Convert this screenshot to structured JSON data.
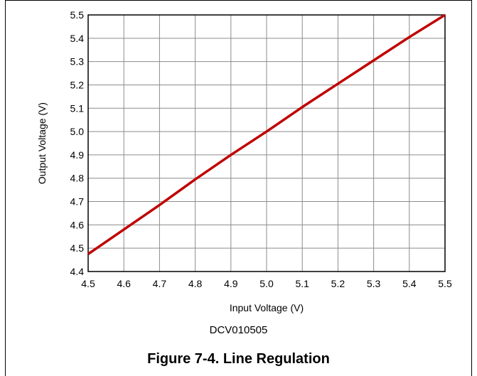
{
  "device_label": "DCV010505",
  "figure_title": "Figure 7-4. Line Regulation",
  "chart_data": {
    "type": "line",
    "xlabel": "Input Voltage (V)",
    "ylabel": "Output Voltage (V)",
    "xlim": [
      4.5,
      5.5
    ],
    "ylim": [
      4.4,
      5.5
    ],
    "x_ticks": [
      "4.5",
      "4.6",
      "4.7",
      "4.8",
      "4.9",
      "5.0",
      "5.1",
      "5.2",
      "5.3",
      "5.4",
      "5.5"
    ],
    "y_ticks": [
      "4.4",
      "4.5",
      "4.6",
      "4.7",
      "4.8",
      "4.9",
      "5.0",
      "5.1",
      "5.2",
      "5.3",
      "5.4",
      "5.5"
    ],
    "grid": true,
    "line_color": "#c00000",
    "series": [
      {
        "x": [
          4.5,
          4.6,
          4.7,
          4.8,
          4.9,
          5.0,
          5.1,
          5.2,
          5.3,
          5.4,
          5.5
        ],
        "y": [
          4.475,
          4.58,
          4.685,
          4.795,
          4.9,
          5.0,
          5.105,
          5.205,
          5.305,
          5.405,
          5.5
        ]
      }
    ]
  }
}
